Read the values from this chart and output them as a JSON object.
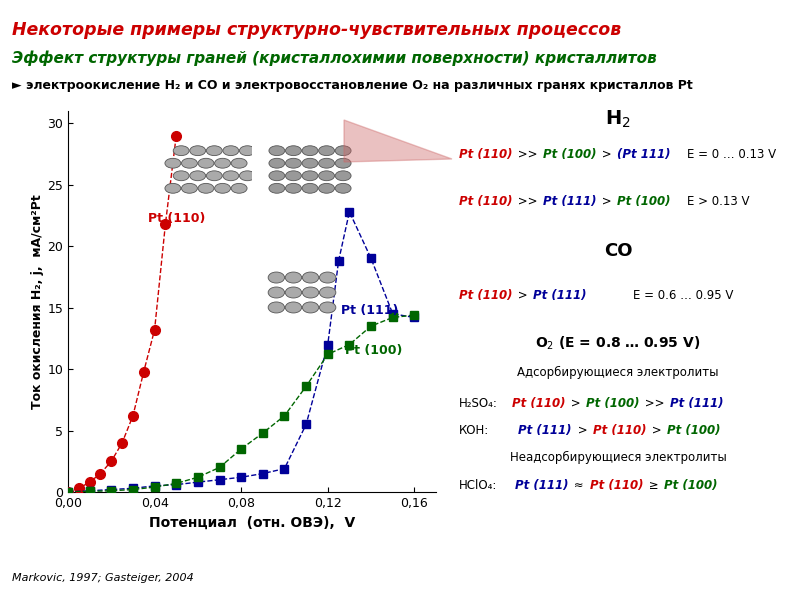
{
  "title": "Некоторые примеры структурно-чувствительных процессов",
  "subtitle": "Эффект структуры граней (кристаллохимии поверхности) кристаллитов",
  "bullet": "► электроокисление H₂ и СО и электровосстановление O₂ на различных гранях кристаллов Pt",
  "xlabel": "Потенциал  (отн. ОВЭ),  V",
  "ylabel": "Ток окисления H₂, j,  мА/см²Pt",
  "reference": "Markovic, 1997; Gasteiger, 2004",
  "pt110_color": "#cc0000",
  "pt111_color": "#000099",
  "pt100_color": "#006600",
  "pt110_x": [
    0.0,
    0.005,
    0.01,
    0.015,
    0.02,
    0.025,
    0.03,
    0.035,
    0.04,
    0.045,
    0.05
  ],
  "pt110_y": [
    0.0,
    0.3,
    0.8,
    1.5,
    2.5,
    4.0,
    6.2,
    9.8,
    13.2,
    21.8,
    29.0
  ],
  "pt111_x": [
    0.0,
    0.01,
    0.02,
    0.03,
    0.04,
    0.05,
    0.06,
    0.07,
    0.08,
    0.09,
    0.1,
    0.11,
    0.12,
    0.125,
    0.13,
    0.14,
    0.15,
    0.16
  ],
  "pt111_y": [
    0.0,
    0.1,
    0.2,
    0.3,
    0.5,
    0.6,
    0.8,
    1.0,
    1.2,
    1.5,
    1.9,
    5.5,
    12.0,
    18.8,
    22.8,
    19.0,
    14.5,
    14.2
  ],
  "pt100_x": [
    0.0,
    0.01,
    0.02,
    0.03,
    0.04,
    0.05,
    0.06,
    0.07,
    0.08,
    0.09,
    0.1,
    0.11,
    0.12,
    0.13,
    0.14,
    0.15,
    0.16
  ],
  "pt100_y": [
    0.0,
    0.05,
    0.1,
    0.2,
    0.4,
    0.7,
    1.2,
    2.0,
    3.5,
    4.8,
    6.2,
    8.6,
    11.2,
    12.0,
    13.5,
    14.2,
    14.4
  ],
  "xlim": [
    0.0,
    0.17
  ],
  "ylim": [
    0.0,
    31.0
  ],
  "xticks": [
    0.0,
    0.04,
    0.08,
    0.12,
    0.16
  ],
  "yticks": [
    0,
    5,
    10,
    15,
    20,
    25,
    30
  ],
  "xtick_labels": [
    "0,00",
    "0,04",
    "0,08",
    "0,12",
    "0,16"
  ],
  "ytick_labels": [
    "0",
    "5",
    "10",
    "15",
    "20",
    "25",
    "30"
  ]
}
